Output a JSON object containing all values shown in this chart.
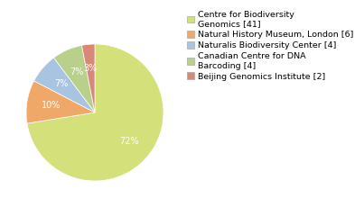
{
  "labels": [
    "Centre for Biodiversity\nGenomics [41]",
    "Natural History Museum, London [6]",
    "Naturalis Biodiversity Center [4]",
    "Canadian Centre for DNA\nBarcoding [4]",
    "Beijing Genomics Institute [2]"
  ],
  "values": [
    71,
    10,
    7,
    7,
    3
  ],
  "colors": [
    "#d4e07a",
    "#f0a868",
    "#a8c4e0",
    "#b8d08a",
    "#d88878"
  ],
  "background_color": "#ffffff"
}
